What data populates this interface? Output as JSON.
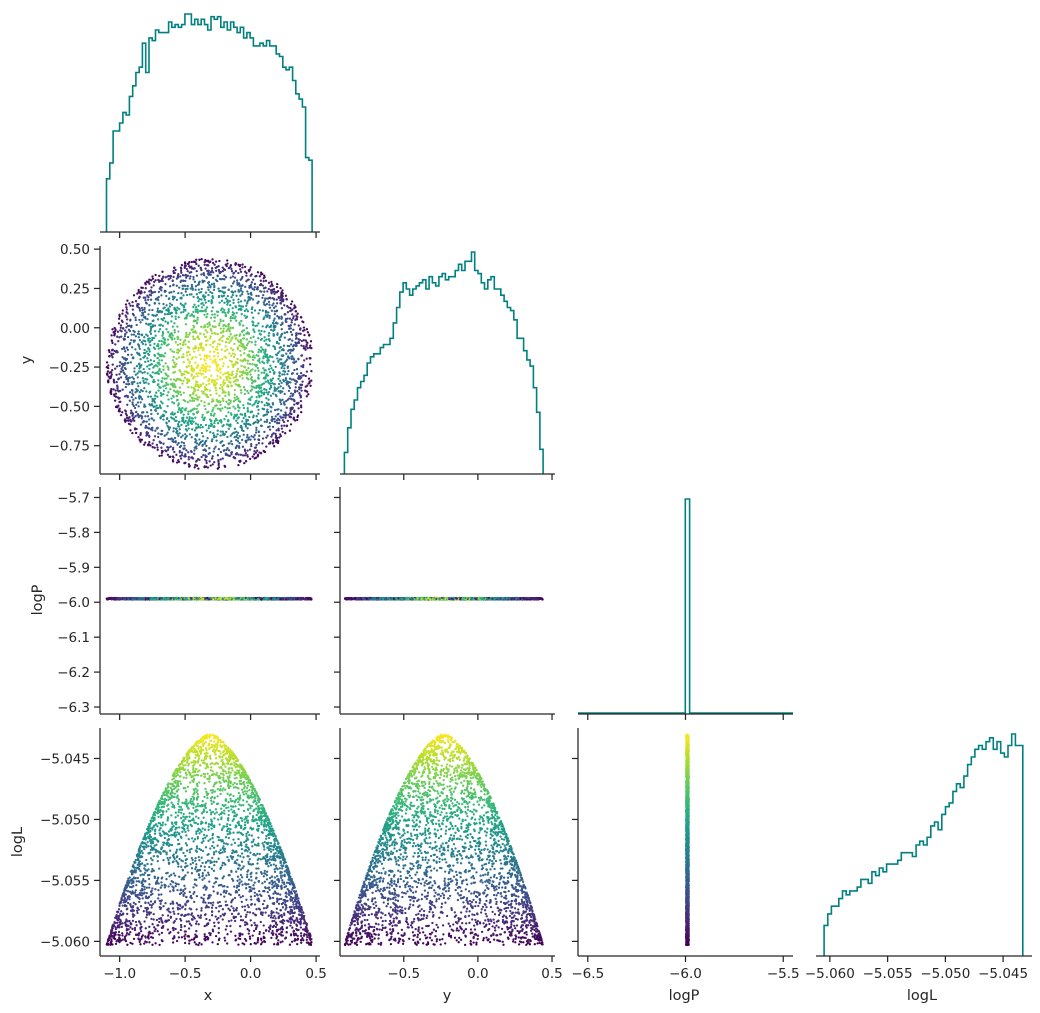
{
  "chart_data": {
    "type": "corner",
    "variables": [
      "x",
      "y",
      "logP",
      "logL"
    ],
    "hist_color": "#008080",
    "colormap": "viridis",
    "color_by": "logL",
    "axes": {
      "x": {
        "lim": [
          -1.15,
          0.53
        ],
        "ticks": [
          -1.0,
          -0.5,
          0.0,
          0.5
        ],
        "tick_labels": [
          "−1.0",
          "−0.5",
          "0.0",
          "0.5"
        ]
      },
      "y": {
        "lim": [
          -0.93,
          0.52
        ],
        "ticks": [
          -0.5,
          0.0,
          0.5
        ],
        "tick_labels": [
          "−0.5",
          "0.0",
          "0.5"
        ]
      },
      "y_row": {
        "ticks": [
          0.5,
          0.25,
          0.0,
          -0.25,
          -0.5,
          -0.75
        ],
        "tick_labels": [
          "0.50",
          "0.25",
          "0.00",
          "−0.25",
          "−0.50",
          "−0.75"
        ]
      },
      "logP": {
        "lim": [
          -6.55,
          -5.45
        ],
        "ticks": [
          -6.5,
          -6.0,
          -5.5
        ],
        "tick_labels": [
          "−6.5",
          "−6.0",
          "−5.5"
        ]
      },
      "logP_row": {
        "lim": [
          -6.32,
          -5.67
        ],
        "ticks": [
          -5.7,
          -5.8,
          -5.9,
          -6.0,
          -6.1,
          -6.2,
          -6.3
        ],
        "tick_labels": [
          "−5.7",
          "−5.8",
          "−5.9",
          "−6.0",
          "−6.1",
          "−6.2",
          "−6.3"
        ]
      },
      "logL": {
        "lim": [
          -5.0612,
          -5.0425
        ],
        "ticks": [
          -5.06,
          -5.055,
          -5.05,
          -5.045
        ],
        "tick_labels": [
          "−5.060",
          "−5.055",
          "−5.050",
          "−5.045"
        ]
      }
    },
    "logP_value": -5.99,
    "logL_max": -5.043,
    "logL_min": -5.0603,
    "ellipse": {
      "center_x": -0.31,
      "center_y": -0.23,
      "radius_x": 0.79,
      "radius_y": 0.67
    },
    "histograms": {
      "x": {
        "bin_start": -1.1,
        "bin_end": 0.47,
        "counts": [
          20,
          26,
          38,
          38,
          41,
          45,
          44,
          51,
          55,
          60,
          62,
          71,
          60,
          73,
          72,
          76,
          75,
          75,
          75,
          79,
          77,
          78,
          77,
          78,
          82,
          82,
          78,
          80,
          78,
          80,
          78,
          76,
          81,
          80,
          81,
          77,
          79,
          76,
          79,
          77,
          75,
          77,
          73,
          75,
          73,
          70,
          70,
          71,
          70,
          72,
          70,
          70,
          67,
          66,
          62,
          61,
          62,
          57,
          52,
          50,
          47,
          28,
          27
        ]
      },
      "y": {
        "bin_start": -0.9,
        "bin_end": 0.44,
        "counts": [
          7,
          15,
          21,
          24,
          28,
          30,
          32,
          36,
          38,
          39,
          39,
          41,
          42,
          42,
          44,
          49,
          54,
          59,
          62,
          60,
          58,
          60,
          61,
          62,
          63,
          60,
          64,
          62,
          61,
          64,
          65,
          63,
          64,
          64,
          66,
          68,
          66,
          69,
          69,
          72,
          66,
          65,
          62,
          60,
          63,
          64,
          60,
          60,
          58,
          56,
          54,
          53,
          50,
          44,
          44,
          40,
          37,
          35,
          28,
          20,
          8
        ]
      },
      "logP": {
        "bin_start": -6.55,
        "bin_end": -5.45,
        "spike_at": -5.99,
        "spike_width": 0.022,
        "spike_height": 1.0
      },
      "logL": {
        "bin_start": -5.0605,
        "bin_end": -5.0433,
        "counts": [
          8,
          11,
          13,
          13,
          15,
          17,
          16,
          17,
          17,
          18,
          20,
          20,
          19,
          22,
          21,
          23,
          22,
          24,
          24,
          24,
          25,
          27,
          27,
          27,
          26,
          29,
          30,
          29,
          31,
          34,
          35,
          33,
          37,
          39,
          40,
          43,
          45,
          44,
          47,
          50,
          52,
          54,
          55,
          54,
          56,
          57,
          54,
          56,
          53,
          52,
          55,
          58,
          55,
          55
        ]
      }
    }
  }
}
